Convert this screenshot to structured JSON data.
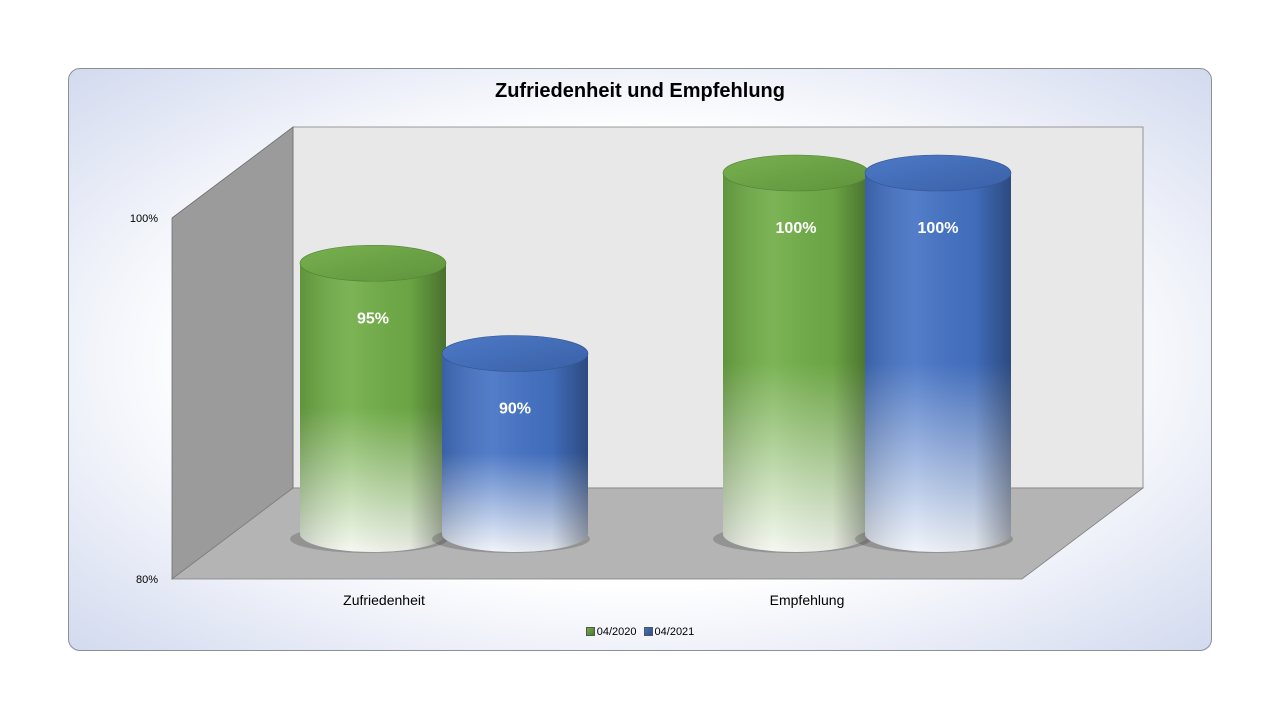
{
  "chart_data": {
    "type": "bar",
    "title": "Zufriedenheit und Empfehlung",
    "categories": [
      "Zufriedenheit",
      "Empfehlung"
    ],
    "series": [
      {
        "name": "04/2020",
        "values": [
          95,
          100
        ],
        "labels": [
          "95%",
          "100%"
        ],
        "color": "#70ad47"
      },
      {
        "name": "04/2021",
        "values": [
          90,
          100
        ],
        "labels": [
          "90%",
          "100%"
        ],
        "color": "#4472c4"
      }
    ],
    "ylim": [
      80,
      100
    ],
    "yticks": [
      80,
      100
    ],
    "ytick_labels": [
      "80%",
      "100%"
    ],
    "legend": "bottom",
    "style": "3d-cylinder",
    "colors": {
      "frame_fill": "#dfe5f5",
      "back_wall": "#e8e8e8",
      "side_wall": "#9b9b9b",
      "floor": "#b4b4b4"
    }
  }
}
